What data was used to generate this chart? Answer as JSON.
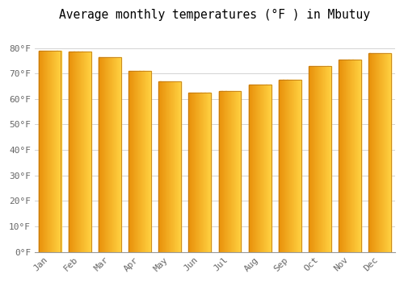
{
  "title": "Average monthly temperatures (°F ) in Mbutuy",
  "months": [
    "Jan",
    "Feb",
    "Mar",
    "Apr",
    "May",
    "Jun",
    "Jul",
    "Aug",
    "Sep",
    "Oct",
    "Nov",
    "Dec"
  ],
  "values": [
    79,
    78.5,
    76.5,
    71,
    67,
    62.5,
    63,
    65.5,
    67.5,
    73,
    75.5,
    78
  ],
  "bar_color_left": "#E8900A",
  "bar_color_right": "#FFD040",
  "bar_edge_color": "#B87010",
  "background_color": "#FFFFFF",
  "ylim": [
    0,
    88
  ],
  "yticks": [
    0,
    10,
    20,
    30,
    40,
    50,
    60,
    70,
    80
  ],
  "ytick_labels": [
    "0°F",
    "10°F",
    "20°F",
    "30°F",
    "40°F",
    "50°F",
    "60°F",
    "70°F",
    "80°F"
  ],
  "title_fontsize": 10.5,
  "tick_fontsize": 8,
  "grid_color": "#CCCCCC",
  "font_family": "monospace",
  "bar_width": 0.75,
  "n_gradient_steps": 50
}
